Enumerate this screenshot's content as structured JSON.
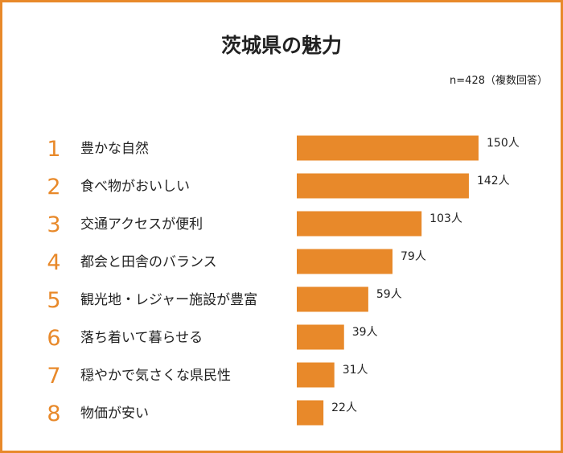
{
  "colors": {
    "frame": "#e8892a",
    "bar": "#e8892a",
    "rank": "#e8892a",
    "text": "#222222"
  },
  "note": "n=428（複数回答）",
  "chart_data": {
    "type": "bar",
    "orientation": "horizontal",
    "title": "茨城県の魅力",
    "xlabel": "",
    "ylabel": "",
    "grid": false,
    "unit": "人",
    "ranks": [
      "1",
      "2",
      "3",
      "4",
      "5",
      "6",
      "7",
      "8"
    ],
    "categories": [
      "豊かな自然",
      "食べ物がおいしい",
      "交通アクセスが便利",
      "都会と田舎のバランス",
      "観光地・レジャー施設が豊富",
      "落ち着いて暮らせる",
      "穏やかで気さくな県民性",
      "物価が安い"
    ],
    "values": [
      150,
      142,
      103,
      79,
      59,
      39,
      31,
      22
    ],
    "value_labels": [
      "150人",
      "142人",
      "103人",
      "79人",
      "59人",
      "39人",
      "31人",
      "22人"
    ],
    "xlim": [
      0,
      150
    ]
  }
}
